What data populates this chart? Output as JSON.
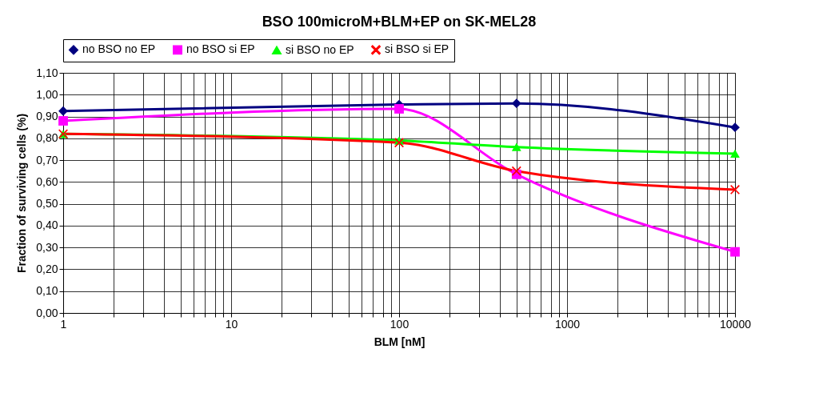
{
  "chart_data": {
    "type": "line",
    "title": "BSO 100microM+BLM+EP on SK-MEL28",
    "xlabel": "BLM [nM]",
    "ylabel": "Fraction of surviving cells (%)",
    "x": [
      1,
      100,
      500,
      10000
    ],
    "series": [
      {
        "name": "no BSO no EP",
        "color": "#000080",
        "marker": "diamond",
        "values": [
          0.925,
          0.955,
          0.96,
          0.85
        ]
      },
      {
        "name": "no BSO si EP",
        "color": "#ff00ff",
        "marker": "square",
        "values": [
          0.88,
          0.935,
          0.635,
          0.28
        ]
      },
      {
        "name": "si BSO no EP",
        "color": "#00ff00",
        "marker": "triangle",
        "values": [
          0.82,
          0.79,
          0.76,
          0.73
        ]
      },
      {
        "name": "si BSO si EP",
        "color": "#ff0000",
        "marker": "cross",
        "values": [
          0.82,
          0.78,
          0.65,
          0.565
        ]
      }
    ],
    "log": "x",
    "xlim": [
      1,
      10000
    ],
    "xticks": [
      1,
      {
        "value": 2,
        "label": null
      },
      {
        "value": 3,
        "label": null
      },
      {
        "value": 4,
        "label": null
      },
      {
        "value": 5,
        "label": null
      },
      {
        "value": 6,
        "label": null
      },
      {
        "value": 7,
        "label": null
      },
      {
        "value": 8,
        "label": null
      },
      {
        "value": 9,
        "label": null
      },
      10,
      {
        "value": 20,
        "label": null
      },
      {
        "value": 30,
        "label": null
      },
      {
        "value": 40,
        "label": null
      },
      {
        "value": 50,
        "label": null
      },
      {
        "value": 60,
        "label": null
      },
      {
        "value": 70,
        "label": null
      },
      {
        "value": 80,
        "label": null
      },
      {
        "value": 90,
        "label": null
      },
      100,
      {
        "value": 200,
        "label": null
      },
      {
        "value": 300,
        "label": null
      },
      {
        "value": 400,
        "label": null
      },
      {
        "value": 500,
        "label": null
      },
      {
        "value": 600,
        "label": null
      },
      {
        "value": 700,
        "label": null
      },
      {
        "value": 800,
        "label": null
      },
      {
        "value": 900,
        "label": null
      },
      1000,
      {
        "value": 2000,
        "label": null
      },
      {
        "value": 3000,
        "label": null
      },
      {
        "value": 4000,
        "label": null
      },
      {
        "value": 5000,
        "label": null
      },
      {
        "value": 6000,
        "label": null
      },
      {
        "value": 7000,
        "label": null
      },
      {
        "value": 8000,
        "label": null
      },
      {
        "value": 9000,
        "label": null
      },
      10000
    ],
    "ylim": [
      0,
      1.1
    ],
    "yticks": [
      {
        "value": 0,
        "label": "0,00"
      },
      {
        "value": 0.1,
        "label": "0,10"
      },
      {
        "value": 0.2,
        "label": "0,20"
      },
      {
        "value": 0.3,
        "label": "0,30"
      },
      {
        "value": 0.4,
        "label": "0,40"
      },
      {
        "value": 0.5,
        "label": "0,50"
      },
      {
        "value": 0.6,
        "label": "0,60"
      },
      {
        "value": 0.7,
        "label": "0,70"
      },
      {
        "value": 0.8,
        "label": "0,80"
      },
      {
        "value": 0.9,
        "label": "0,90"
      },
      {
        "value": 1.0,
        "label": "1,00"
      },
      {
        "value": 1.1,
        "label": "1,10"
      }
    ],
    "grid": true,
    "legend": "top",
    "line_style": "solid"
  }
}
